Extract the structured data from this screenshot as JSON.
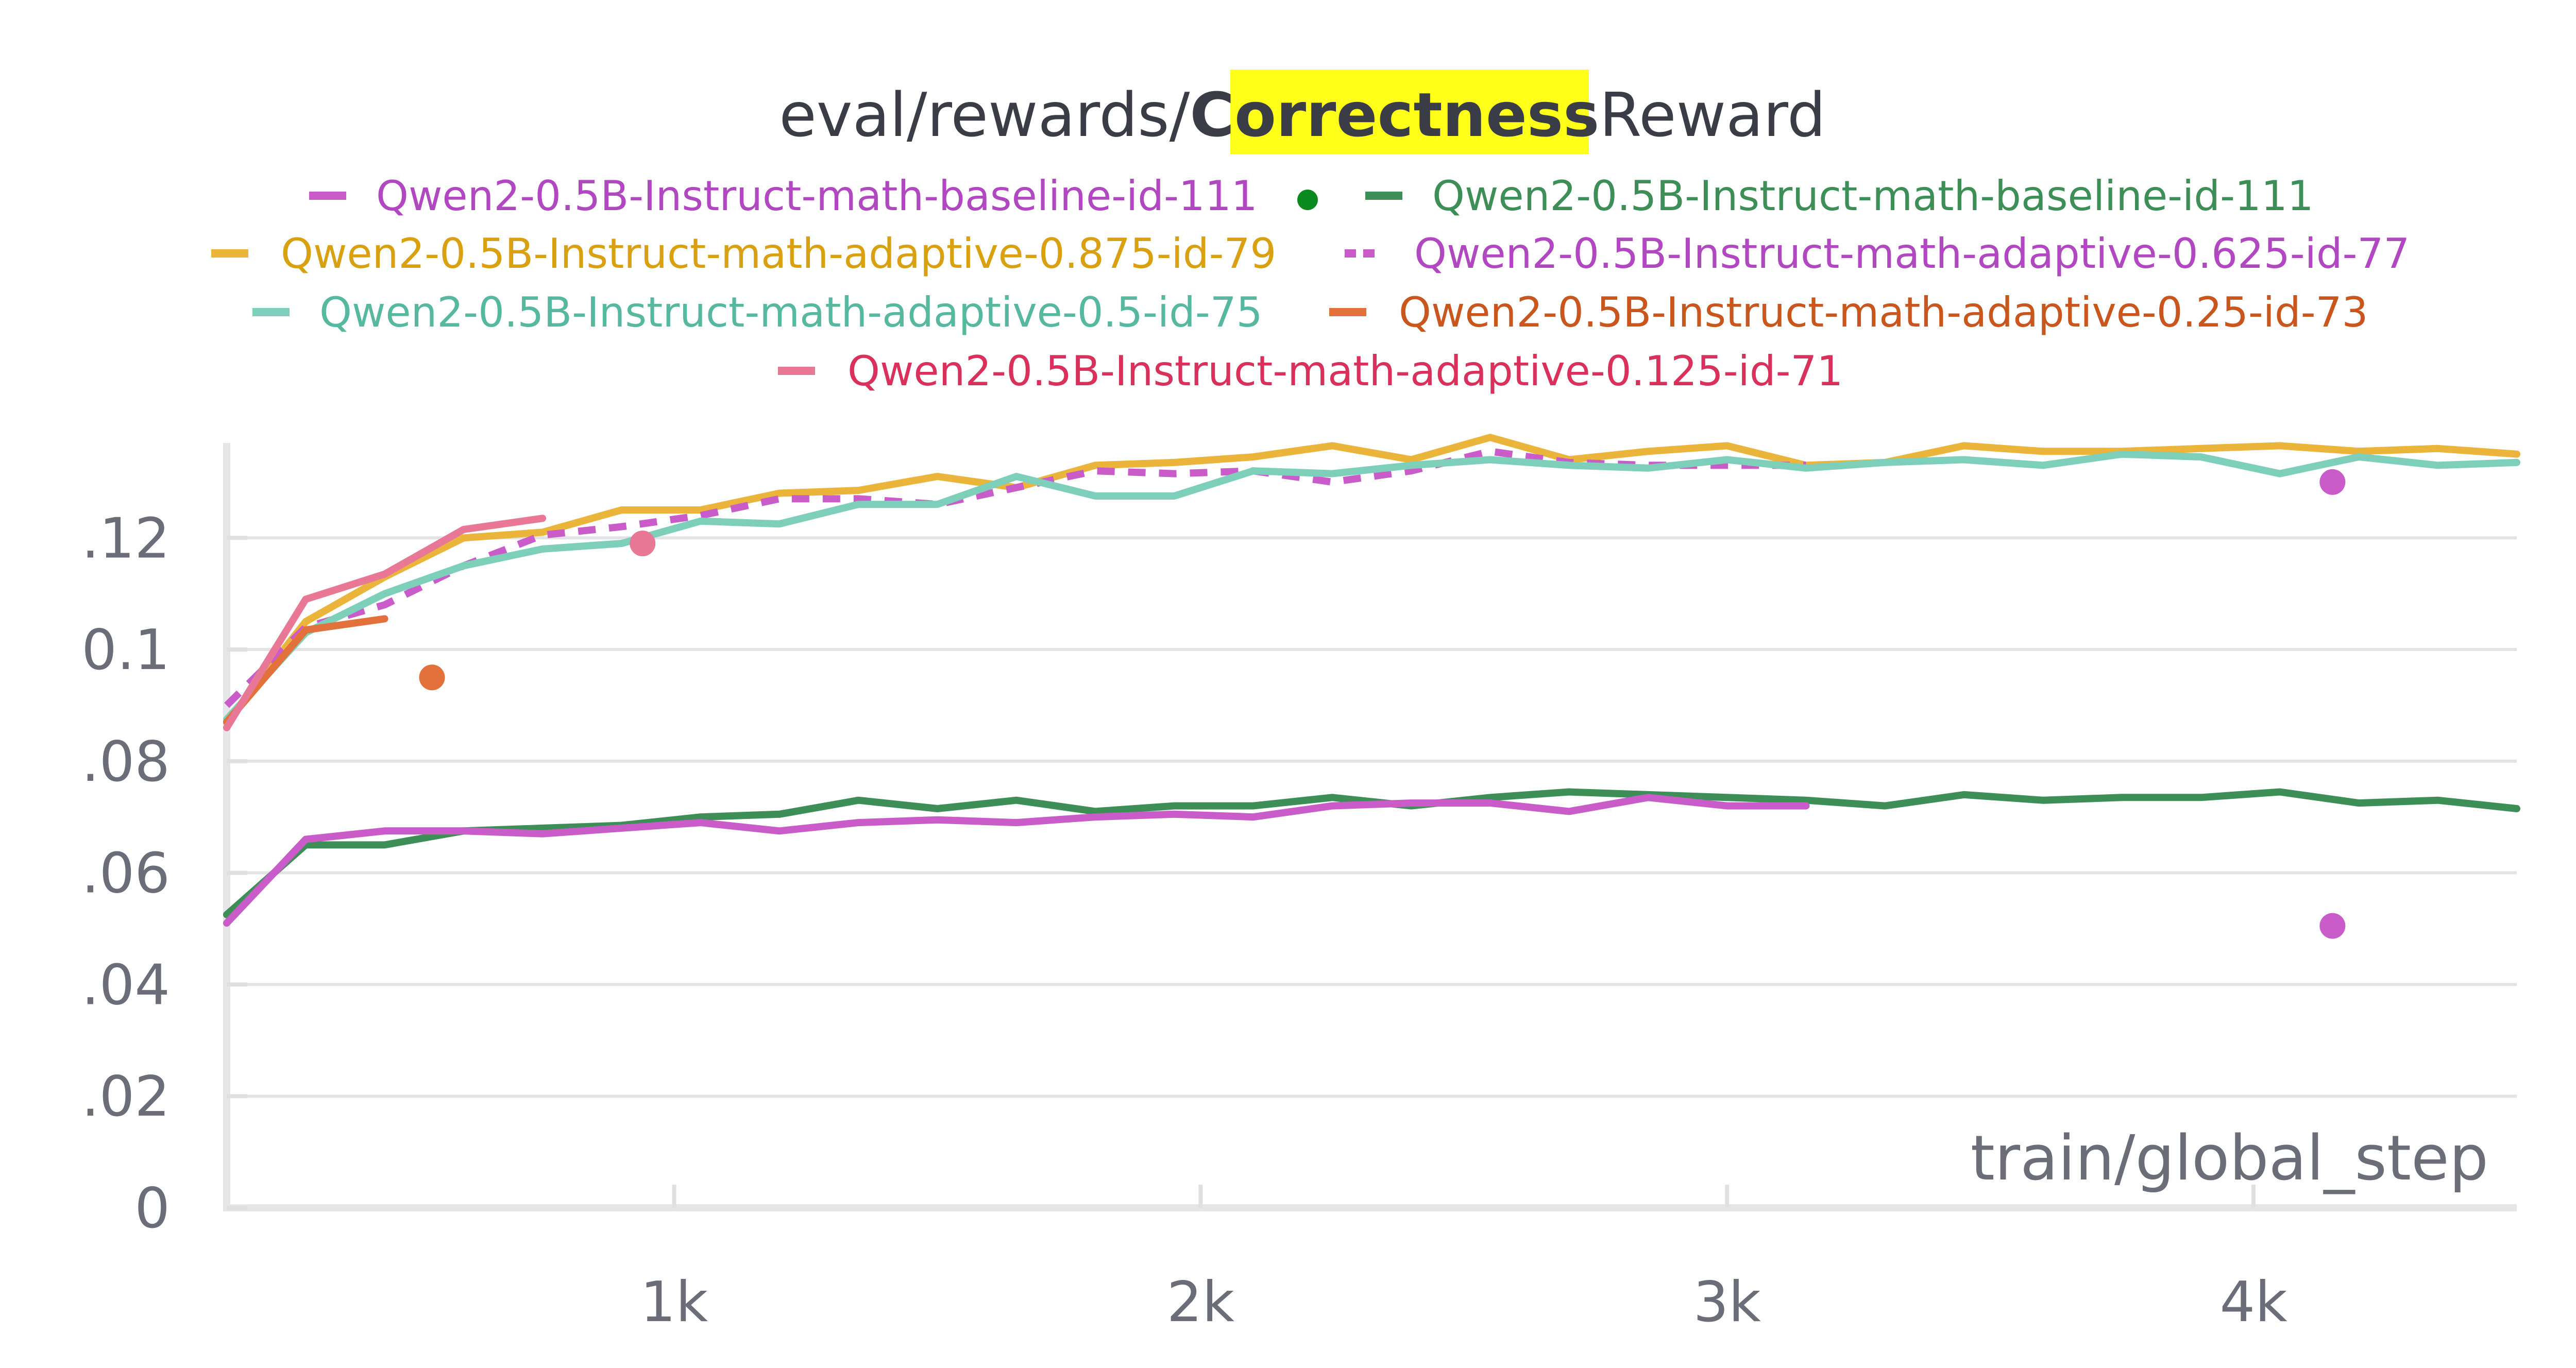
{
  "chart_data": {
    "type": "line",
    "title_prefix": "eval/rewards/",
    "title_highlight": "Correctness",
    "title_suffix": "Reward",
    "highlight_color": "#ffff1a",
    "xlabel": "train/global_step",
    "ylabel": "",
    "xlim": [
      150,
      4500
    ],
    "ylim": [
      0,
      0.137
    ],
    "xticks": [
      {
        "value": 1000,
        "label": "1k"
      },
      {
        "value": 2000,
        "label": "2k"
      },
      {
        "value": 3000,
        "label": "3k"
      },
      {
        "value": 4000,
        "label": "4k"
      }
    ],
    "yticks": [
      {
        "value": 0,
        "label": "0"
      },
      {
        "value": 0.02,
        "label": ".02"
      },
      {
        "value": 0.04,
        "label": ".04"
      },
      {
        "value": 0.06,
        "label": ".06"
      },
      {
        "value": 0.08,
        "label": ".08"
      },
      {
        "value": 0.1,
        "label": "0.1"
      },
      {
        "value": 0.12,
        "label": ".12"
      }
    ],
    "grid": true,
    "legend_position": "top",
    "series": [
      {
        "name": "Qwen2-0.5B-Instruct-math-baseline-id-111",
        "color": "#c95cc9",
        "text_color": "#b247c2",
        "dash": "solid",
        "x": [
          150,
          300,
          450,
          600,
          750,
          900,
          1050,
          1200,
          1350,
          1500,
          1650,
          1800,
          1950,
          2100,
          2250,
          2400,
          2550,
          2700,
          2850,
          3000,
          3150
        ],
        "y": [
          0.051,
          0.066,
          0.0675,
          0.0675,
          0.067,
          0.068,
          0.069,
          0.0675,
          0.069,
          0.0695,
          0.069,
          0.07,
          0.0705,
          0.07,
          0.072,
          0.0725,
          0.0725,
          0.071,
          0.0735,
          0.072,
          0.072
        ],
        "markers": [
          {
            "x": 4150,
            "y": 0.0505
          }
        ]
      },
      {
        "name": "Qwen2-0.5B-Instruct-math-baseline-id-111",
        "color": "#3d8f57",
        "text_color": "#3d8f57",
        "dash": "solid",
        "legend_dot": "#0a8a1e",
        "x": [
          150,
          300,
          450,
          600,
          750,
          900,
          1050,
          1200,
          1350,
          1500,
          1650,
          1800,
          1950,
          2100,
          2250,
          2400,
          2550,
          2700,
          2850,
          3000,
          3150,
          3300,
          3450,
          3600,
          3750,
          3900,
          4050,
          4200,
          4350,
          4500
        ],
        "y": [
          0.0525,
          0.065,
          0.065,
          0.0675,
          0.068,
          0.0685,
          0.07,
          0.0705,
          0.073,
          0.0715,
          0.073,
          0.071,
          0.072,
          0.072,
          0.0735,
          0.072,
          0.0735,
          0.0745,
          0.074,
          0.0735,
          0.073,
          0.072,
          0.074,
          0.073,
          0.0735,
          0.0735,
          0.0745,
          0.0725,
          0.073,
          0.0715
        ],
        "markers": []
      },
      {
        "name": "Qwen2-0.5B-Instruct-math-adaptive-0.875-id-79",
        "color": "#ebb43a",
        "text_color": "#d9a010",
        "dash": "solid",
        "x": [
          150,
          300,
          450,
          600,
          750,
          900,
          1050,
          1200,
          1350,
          1500,
          1650,
          1800,
          1950,
          2100,
          2250,
          2400,
          2550,
          2700,
          2850,
          3000,
          3150,
          3300,
          3450,
          3600,
          3750,
          3900,
          4050,
          4200,
          4350,
          4500
        ],
        "y": [
          0.087,
          0.105,
          0.113,
          0.12,
          0.121,
          0.125,
          0.125,
          0.128,
          0.1285,
          0.131,
          0.129,
          0.133,
          0.1335,
          0.1345,
          0.1365,
          0.134,
          0.138,
          0.134,
          0.1355,
          0.1365,
          0.133,
          0.1335,
          0.1365,
          0.1355,
          0.1355,
          0.136,
          0.1365,
          0.1355,
          0.136,
          0.135
        ],
        "markers": []
      },
      {
        "name": "Qwen2-0.5B-Instruct-math-adaptive-0.625-id-77",
        "color": "#c95cc9",
        "text_color": "#b247c2",
        "dash": "dashed",
        "x": [
          150,
          300,
          450,
          600,
          750,
          900,
          1050,
          1200,
          1350,
          1500,
          1650,
          1800,
          1950,
          2100,
          2250,
          2400,
          2550,
          2700,
          2850,
          3000,
          3150
        ],
        "y": [
          0.09,
          0.104,
          0.108,
          0.115,
          0.1205,
          0.122,
          0.124,
          0.127,
          0.127,
          0.126,
          0.129,
          0.132,
          0.1315,
          0.132,
          0.13,
          0.132,
          0.1355,
          0.1335,
          0.133,
          0.133,
          0.133
        ],
        "markers": [
          {
            "x": 4150,
            "y": 0.13
          }
        ]
      },
      {
        "name": "Qwen2-0.5B-Instruct-math-adaptive-0.5-id-75",
        "color": "#7ecfba",
        "text_color": "#57b8a0",
        "dash": "solid",
        "x": [
          150,
          300,
          450,
          600,
          750,
          900,
          1050,
          1200,
          1350,
          1500,
          1650,
          1800,
          1950,
          2100,
          2250,
          2400,
          2550,
          2700,
          2850,
          3000,
          3150,
          3300,
          3450,
          3600,
          3750,
          3900,
          4050,
          4200,
          4350,
          4500
        ],
        "y": [
          0.0875,
          0.103,
          0.11,
          0.115,
          0.118,
          0.119,
          0.123,
          0.1225,
          0.126,
          0.126,
          0.131,
          0.1275,
          0.1275,
          0.132,
          0.1315,
          0.133,
          0.134,
          0.133,
          0.1325,
          0.134,
          0.1325,
          0.1335,
          0.134,
          0.133,
          0.135,
          0.1345,
          0.1315,
          0.1345,
          0.133,
          0.1335
        ],
        "markers": []
      },
      {
        "name": "Qwen2-0.5B-Instruct-math-adaptive-0.25-id-73",
        "color": "#e3713b",
        "text_color": "#c9561c",
        "dash": "solid",
        "x": [
          150,
          300,
          450
        ],
        "y": [
          0.087,
          0.1035,
          0.1055
        ],
        "markers": [
          {
            "x": 540,
            "y": 0.095
          }
        ]
      },
      {
        "name": "Qwen2-0.5B-Instruct-math-adaptive-0.125-id-71",
        "color": "#e87895",
        "text_color": "#d9305c",
        "dash": "solid",
        "x": [
          150,
          300,
          450,
          600,
          750
        ],
        "y": [
          0.086,
          0.109,
          0.1135,
          0.1215,
          0.1235
        ],
        "markers": [
          {
            "x": 940,
            "y": 0.119
          }
        ]
      }
    ]
  }
}
